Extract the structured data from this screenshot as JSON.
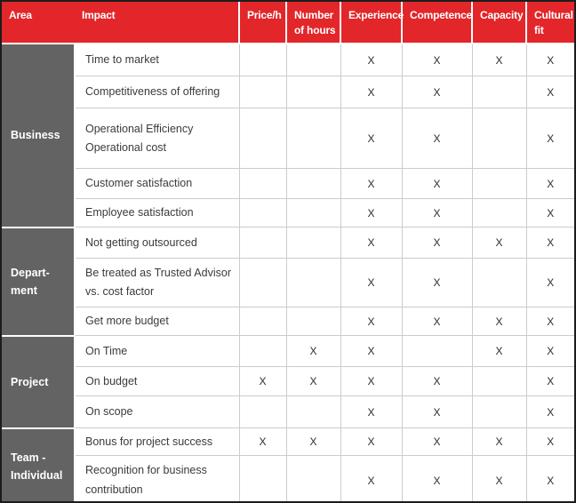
{
  "colors": {
    "header_bg": "#e2262a",
    "header_text": "#ffffff",
    "area_bg": "#636363",
    "area_text": "#ffffff",
    "body_text": "#3b3b3b",
    "grid_line": "#cccccc",
    "mark_color": "#2d2d2d",
    "outer_border": "#1c1c1c"
  },
  "table": {
    "mark_symbol": "X",
    "columns": [
      "Area",
      "Impact",
      "Price/h",
      "Number of hours",
      "Experience",
      "Competence",
      "Capacity",
      "Cultural fit"
    ],
    "criteria_columns": [
      "Price/h",
      "Number of hours",
      "Experience",
      "Competence",
      "Capacity",
      "Cultural fit"
    ],
    "groups": [
      {
        "area": "Business",
        "rows": [
          {
            "impact": "Time to market",
            "marks": [
              0,
              0,
              1,
              1,
              1,
              1
            ]
          },
          {
            "impact": "Competitiveness of offering",
            "marks": [
              0,
              0,
              1,
              1,
              0,
              1
            ]
          },
          {
            "impact": "Operational Efficiency\nOperational cost",
            "marks": [
              0,
              0,
              1,
              1,
              0,
              1
            ]
          },
          {
            "impact": "Customer satisfaction",
            "marks": [
              0,
              0,
              1,
              1,
              0,
              1
            ]
          },
          {
            "impact": "Employee satisfaction",
            "marks": [
              0,
              0,
              1,
              1,
              0,
              1
            ]
          }
        ]
      },
      {
        "area": "Depart-\nment",
        "rows": [
          {
            "impact": "Not getting outsourced",
            "marks": [
              0,
              0,
              1,
              1,
              1,
              1
            ]
          },
          {
            "impact": "Be treated as Trusted Advisor\nvs. cost factor",
            "marks": [
              0,
              0,
              1,
              1,
              0,
              1
            ]
          },
          {
            "impact": "Get more budget",
            "marks": [
              0,
              0,
              1,
              1,
              1,
              1
            ]
          }
        ]
      },
      {
        "area": "Project",
        "rows": [
          {
            "impact": "On Time",
            "marks": [
              0,
              1,
              1,
              0,
              1,
              1
            ]
          },
          {
            "impact": "On budget",
            "marks": [
              1,
              1,
              1,
              1,
              0,
              1
            ]
          },
          {
            "impact": "On scope",
            "marks": [
              0,
              0,
              1,
              1,
              0,
              1
            ]
          }
        ]
      },
      {
        "area": "Team -\nIndividual",
        "rows": [
          {
            "impact": "Bonus for project success",
            "marks": [
              1,
              1,
              1,
              1,
              1,
              1
            ]
          },
          {
            "impact": "Recognition for business\ncontribution",
            "marks": [
              0,
              0,
              1,
              1,
              1,
              1
            ]
          }
        ]
      }
    ]
  }
}
